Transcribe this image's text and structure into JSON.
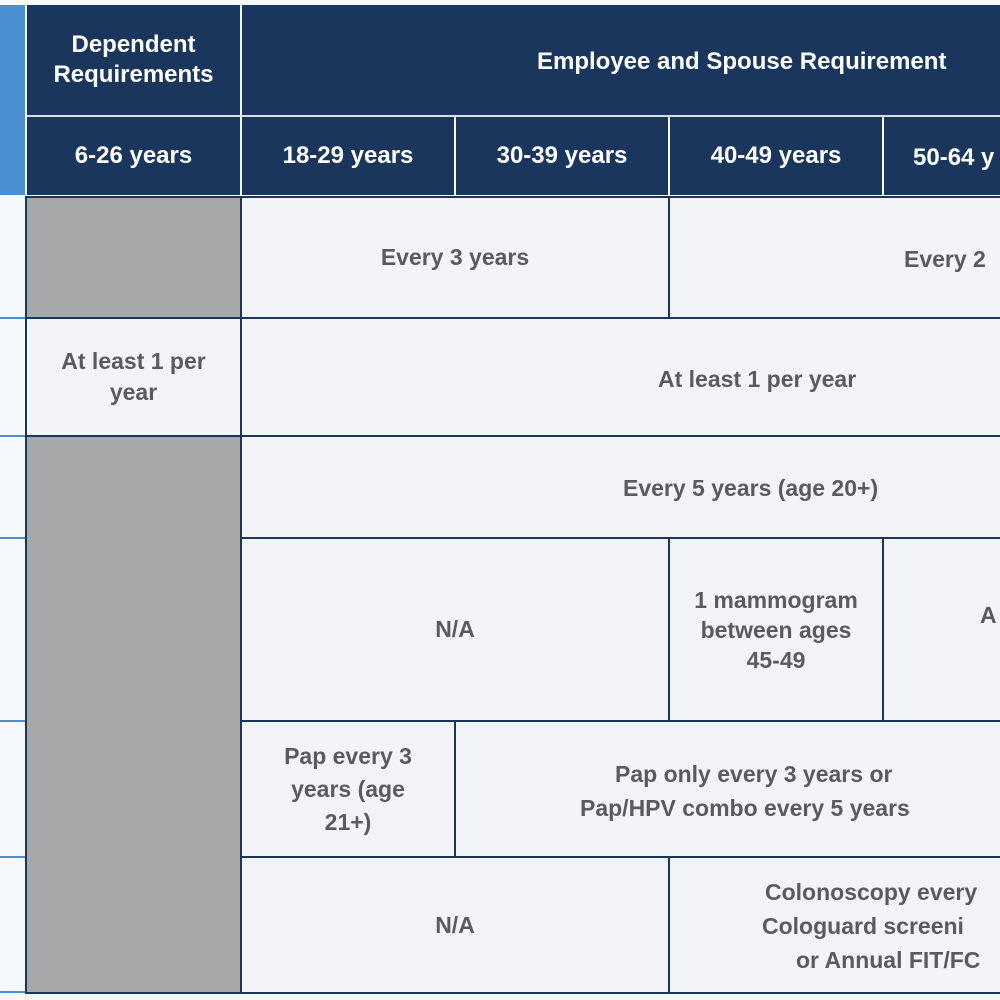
{
  "header": {
    "dependent_title": "Dependent Requirements",
    "employee_title": "Employee and Spouse Requirement",
    "age_columns": [
      "6-26 years",
      "18-29 years",
      "30-39 years",
      "40-49 years",
      "50-64 y"
    ]
  },
  "rows": {
    "r1": {
      "employee_a": "Every 3 years",
      "employee_b": "Every 2"
    },
    "r2": {
      "dependent": "At least 1 per year",
      "employee": "At least 1 per year"
    },
    "r3": {
      "employee": "Every 5 years (age 20+)"
    },
    "r4": {
      "employee_a": "N/A",
      "employee_b": "1 mammogram between ages 45-49",
      "employee_c": "A"
    },
    "r5": {
      "employee_a": "Pap every 3 years (age 21+)",
      "employee_b_line1": "Pap only every 3 years or",
      "employee_b_line2": "Pap/HPV combo every 5 years"
    },
    "r6": {
      "employee_a": "N/A",
      "employee_b_line1": "Colonoscopy every",
      "employee_b_line2": "Cologuard screeni",
      "employee_b_line3": "or Annual FIT/FC"
    }
  },
  "colors": {
    "header": "#1b365d",
    "accent": "#4a90d0",
    "cell": "#f2f4f7",
    "not_applicable": "#a7a8aa",
    "text": "#5a5b5e"
  }
}
